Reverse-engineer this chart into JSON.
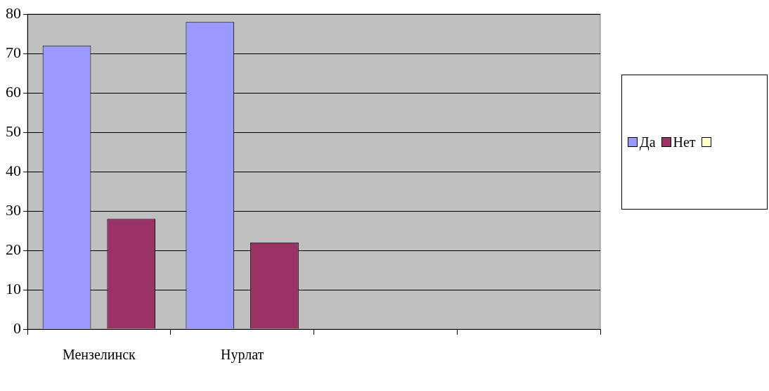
{
  "chart_data": {
    "type": "bar",
    "categories": [
      "Мензелинск",
      "Нурлат",
      null,
      null
    ],
    "series": [
      {
        "name": "Да",
        "color": "#9999ff",
        "values": [
          72,
          78,
          null,
          null
        ]
      },
      {
        "name": "Нет",
        "color": "#993366",
        "values": [
          28,
          22,
          null,
          null
        ]
      }
    ],
    "ylim": [
      0,
      80
    ],
    "yticks": [
      0,
      10,
      20,
      30,
      40,
      50,
      60,
      70,
      80
    ],
    "grid": "y",
    "legend": "right"
  }
}
